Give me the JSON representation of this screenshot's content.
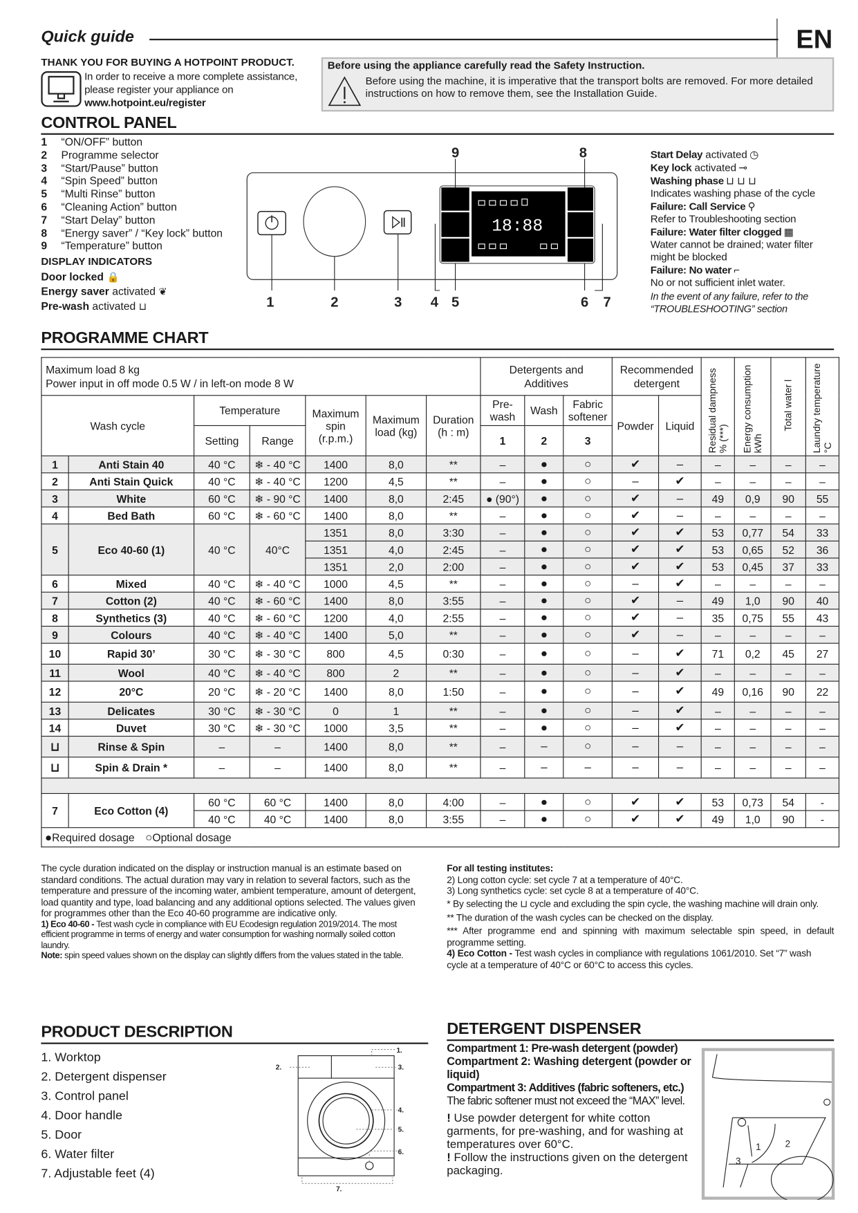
{
  "header": {
    "title": "Quick guide",
    "lang": "EN"
  },
  "intro": {
    "thanks": "THANK YOU FOR BUYING A HOTPOINT PRODUCT.",
    "text1": "In order to receive a more complete assistance,",
    "text2": "please register your appliance on",
    "url": "www.hotpoint.eu/register",
    "icon": "computer-icon"
  },
  "safety": {
    "title": "Before using the appliance carefully read the Safety Instruction.",
    "text": "Before using the machine, it is imperative that the transport bolts are removed. For more detailed instructions on how to remove them, see the Installation Guide.",
    "icon": "warning-triangle-icon"
  },
  "control_panel": {
    "title": "CONTROL PANEL",
    "items": [
      {
        "n": "1",
        "t": "“ON/OFF” button"
      },
      {
        "n": "2",
        "t": "Programme selector"
      },
      {
        "n": "3",
        "t": "“Start/Pause” button"
      },
      {
        "n": "4",
        "t": "“Spin Speed” button"
      },
      {
        "n": "5",
        "t": "“Multi Rinse” button"
      },
      {
        "n": "6",
        "t": "“Cleaning Action” button"
      },
      {
        "n": "7",
        "t": "“Start Delay” button"
      },
      {
        "n": "8",
        "t": "“Energy saver” / “Key lock” button"
      },
      {
        "n": "9",
        "t": "“Temperature” button"
      }
    ],
    "display_title": "DISPLAY INDICATORS",
    "left_indicators": [
      {
        "b": "Door locked",
        "t": "",
        "icon": "lock-icon",
        "glyph": "🔒"
      },
      {
        "b": "Energy saver",
        "t": " activated",
        "icon": "leaf-icon",
        "glyph": "❦"
      },
      {
        "b": "Pre-wash",
        "t": " activated",
        "icon": "prewash-icon",
        "glyph": "⊔"
      }
    ],
    "right_indicators": [
      {
        "b": "Start Delay",
        "t": " activated",
        "glyph": "◷",
        "sub": "",
        "icon": "clock-icon"
      },
      {
        "b": "Key lock",
        "t": " activated",
        "glyph": "⊸",
        "sub": "",
        "icon": "key-icon"
      },
      {
        "b": "Washing phase",
        "t": "",
        "glyph": "⊔ ⊔ ⊔",
        "sub": "Indicates washing phase of the cycle",
        "icon": "washing-phase-icon"
      },
      {
        "b": "Failure: Call Service",
        "t": "",
        "glyph": "⚲",
        "sub": "Refer to Troubleshooting section",
        "icon": "service-icon"
      },
      {
        "b": "Failure: Water filter clogged",
        "t": "",
        "glyph": "▦",
        "sub": "Water cannot be drained; water filter might be blocked",
        "icon": "filter-icon"
      },
      {
        "b": "Failure: No water",
        "t": "",
        "glyph": "⌐",
        "sub": "No or not sufficient inlet water.",
        "icon": "tap-icon"
      }
    ],
    "failure_note": "In the event of any failure, refer to the “TROUBLESHOOTING” section",
    "diagram_labels": [
      "1",
      "2",
      "3",
      "4",
      "5",
      "6",
      "7",
      "8",
      "9"
    ],
    "display_digits": "18:88"
  },
  "chart": {
    "title": "PROGRAMME CHART",
    "max_load": "Maximum load 8 kg",
    "power": "Power input in off mode 0.5 W / in left-on mode 8 W",
    "h": {
      "det": "Detergents and Additives",
      "rec": "Recommended detergent",
      "resid": "Residual dampness % (***)",
      "energy": "Energy consumption kWh",
      "water": "Total water l",
      "ltemp": "Laundry temperature °C",
      "wash_cycle": "Wash cycle",
      "temperature": "Temperature",
      "setting": "Setting",
      "range": "Range",
      "spin": "Maximum spin (r.p.m.)",
      "load": "Maximum load (kg)",
      "duration": "Duration (h : m)",
      "prewash": "Pre-wash",
      "wash": "Wash",
      "softener": "Fabric softener",
      "c1": "1",
      "c2": "2",
      "c3": "3",
      "powder": "Powder",
      "liquid": "Liquid"
    },
    "programmes": [
      {
        "num": "1",
        "name": "Anti Stain 40",
        "shade": true,
        "setting": "40 °C",
        "range": "❄ - 40 °C",
        "v": [
          [
            "1400",
            "8,0",
            "**",
            "–",
            "●",
            "○",
            "✔",
            "–",
            "–",
            "–",
            "–",
            "–"
          ]
        ]
      },
      {
        "num": "2",
        "name": "Anti Stain Quick",
        "setting": "40 °C",
        "range": "❄ - 40 °C",
        "v": [
          [
            "1200",
            "4,5",
            "**",
            "–",
            "●",
            "○",
            "–",
            "✔",
            "–",
            "–",
            "–",
            "–"
          ]
        ]
      },
      {
        "num": "3",
        "name": "White",
        "shade": true,
        "setting": "60 °C",
        "range": "❄ - 90 °C",
        "v": [
          [
            "1400",
            "8,0",
            "2:45",
            "● (90°)",
            "●",
            "○",
            "✔",
            "–",
            "49",
            "0,9",
            "90",
            "55"
          ]
        ]
      },
      {
        "num": "4",
        "name": "Bed Bath",
        "setting": "60 °C",
        "range": "❄ - 60 °C",
        "v": [
          [
            "1400",
            "8,0",
            "**",
            "–",
            "●",
            "○",
            "✔",
            "–",
            "–",
            "–",
            "–",
            "–"
          ]
        ]
      },
      {
        "num": "5",
        "name": "Eco 40-60 (1)",
        "shade": true,
        "setting": "40 °C",
        "range": "40°C",
        "v": [
          [
            "1351",
            "8,0",
            "3:30",
            "–",
            "●",
            "○",
            "✔",
            "✔",
            "53",
            "0,77",
            "54",
            "33"
          ],
          [
            "1351",
            "4,0",
            "2:45",
            "–",
            "●",
            "○",
            "✔",
            "✔",
            "53",
            "0,65",
            "52",
            "36"
          ],
          [
            "1351",
            "2,0",
            "2:00",
            "–",
            "●",
            "○",
            "✔",
            "✔",
            "53",
            "0,45",
            "37",
            "33"
          ]
        ]
      },
      {
        "num": "6",
        "name": "Mixed",
        "setting": "40 °C",
        "range": "❄ - 40 °C",
        "v": [
          [
            "1000",
            "4,5",
            "**",
            "–",
            "●",
            "○",
            "–",
            "✔",
            "–",
            "–",
            "–",
            "–"
          ]
        ]
      },
      {
        "num": "7",
        "name": "Cotton (2)",
        "shade": true,
        "setting": "40 °C",
        "range": "❄ - 60 °C",
        "v": [
          [
            "1400",
            "8,0",
            "3:55",
            "–",
            "●",
            "○",
            "✔",
            "–",
            "49",
            "1,0",
            "90",
            "40"
          ]
        ]
      },
      {
        "num": "8",
        "name": "Synthetics (3)",
        "setting": "40 °C",
        "range": "❄ - 60 °C",
        "v": [
          [
            "1200",
            "4,0",
            "2:55",
            "–",
            "●",
            "○",
            "✔",
            "–",
            "35",
            "0,75",
            "55",
            "43"
          ]
        ]
      },
      {
        "num": "9",
        "name": "Colours",
        "shade": true,
        "setting": "40 °C",
        "range": "❄ - 40 °C",
        "v": [
          [
            "1400",
            "5,0",
            "**",
            "–",
            "●",
            "○",
            "✔",
            "–",
            "–",
            "–",
            "–",
            "–"
          ]
        ]
      },
      {
        "num": "10",
        "name": "Rapid 30’",
        "tall": true,
        "setting": "30 °C",
        "range": "❄ - 30 °C",
        "v": [
          [
            "800",
            "4,5",
            "0:30",
            "–",
            "●",
            "○",
            "–",
            "✔",
            "71",
            "0,2",
            "45",
            "27"
          ]
        ]
      },
      {
        "num": "11",
        "name": "Wool",
        "shade": true,
        "setting": "40 °C",
        "range": "❄ - 40 °C",
        "v": [
          [
            "800",
            "2",
            "**",
            "–",
            "●",
            "○",
            "–",
            "✔",
            "–",
            "–",
            "–",
            "–"
          ]
        ]
      },
      {
        "num": "12",
        "name": "20°C",
        "tall": true,
        "setting": "20 °C",
        "range": "❄ - 20 °C",
        "v": [
          [
            "1400",
            "8,0",
            "1:50",
            "–",
            "●",
            "○",
            "–",
            "✔",
            "49",
            "0,16",
            "90",
            "22"
          ]
        ]
      },
      {
        "num": "13",
        "name": "Delicates",
        "shade": true,
        "setting": "30 °C",
        "range": "❄ - 30 °C",
        "v": [
          [
            "0",
            "1",
            "**",
            "–",
            "●",
            "○",
            "–",
            "✔",
            "–",
            "–",
            "–",
            "–"
          ]
        ]
      },
      {
        "num": "14",
        "name": "Duvet",
        "setting": "30 °C",
        "range": "❄ - 30 °C",
        "v": [
          [
            "1000",
            "3,5",
            "**",
            "–",
            "●",
            "○",
            "–",
            "✔",
            "–",
            "–",
            "–",
            "–"
          ]
        ]
      },
      {
        "num": "",
        "icon": "rinse-spin-icon",
        "name": "Rinse & Spin",
        "shade": true,
        "tall": true,
        "setting": "–",
        "range": "–",
        "v": [
          [
            "1400",
            "8,0",
            "**",
            "–",
            "–",
            "○",
            "–",
            "–",
            "–",
            "–",
            "–",
            "–"
          ]
        ]
      },
      {
        "num": "",
        "icon": "spin-drain-icon",
        "name": "Spin & Drain *",
        "tall": true,
        "setting": "–",
        "range": "–",
        "v": [
          [
            "1400",
            "8,0",
            "**",
            "–",
            "–",
            "–",
            "–",
            "–",
            "–",
            "–",
            "–",
            "–"
          ]
        ]
      }
    ],
    "eco_cotton": {
      "num": "7",
      "name": "Eco Cotton (4)",
      "v": [
        [
          "60 °C",
          "60 °C",
          "1400",
          "8,0",
          "4:00",
          "–",
          "●",
          "○",
          "✔",
          "✔",
          "53",
          "0,73",
          "54",
          "-"
        ],
        [
          "40 °C",
          "40 °C",
          "1400",
          "8,0",
          "3:55",
          "–",
          "●",
          "○",
          "✔",
          "✔",
          "49",
          "1,0",
          "90",
          "-"
        ]
      ]
    },
    "legend": {
      "required": "Required dosage",
      "optional": "Optional dosage"
    }
  },
  "notes": {
    "left": "The cycle duration indicated on the display or instruction manual is an estimate based on standard conditions. The actual duration may vary in relation to several factors, such as the temperature and pressure of the incoming water, ambient temperature, amount of detergent, load quantity and type, load balancing and any additional options selected. The values given for programmes other than the Eco 40-60 programme are indicative only.",
    "eco_b": "1) Eco 40-60 - ",
    "eco": "Test wash cycle in compliance with EU Ecodesign regulation 2019/2014. The most efficient programme in terms of energy and water consumption for washing normally soiled cotton laundry.",
    "note_b": "Note:",
    "note": " spin speed values shown on the display can slightly differs from the values stated in the table.",
    "testing": "For all testing institutes:",
    "t2": "2)  Long cotton cycle: set cycle 7 at a temperature of 40°C.",
    "t3": "3)  Long synthetics cycle: set cycle 8 at a temperature of 40°C.",
    "star1a": "* By selecting the",
    "star1b": "cycle and excluding the spin cycle, the washing machine will drain only.",
    "star2": "** The duration of the wash cycles can be checked on the display.",
    "star3": "*** After programme end and spinning with maximum selectable spin speed, in default programme setting.",
    "t4b": "4) Eco Cotton - ",
    "t4": "Test wash cycles in compliance with regulations 1061/2010. Set “7” wash cycle at a temperature of 40°C or 60°C to access this cycles."
  },
  "product": {
    "title": "PRODUCT DESCRIPTION",
    "items": [
      "1.  Worktop",
      "2.  Detergent dispenser",
      "3.  Control panel",
      "4.  Door handle",
      "5.  Door",
      "6.  Water filter",
      "7.  Adjustable feet (4)"
    ],
    "labels": [
      "1.",
      "2.",
      "3.",
      "4.",
      "5.",
      "6.",
      "7."
    ]
  },
  "dispenser": {
    "title": "DETERGENT DISPENSER",
    "c1": "Compartment 1: Pre-wash detergent (powder)",
    "c2": "Compartment 2: Washing detergent (powder or liquid)",
    "c3": "Compartment 3: Additives (fabric softeners, etc.)",
    "max": "The fabric softener must not exceed the “MAX” level.",
    "w1": "Use powder detergent for white cotton garments, for pre-washing, and for washing at temperatures over 60°C.",
    "w2": "Follow the instructions given on the detergent packaging.",
    "mark": "!",
    "labels": [
      "1",
      "2",
      "3"
    ]
  }
}
